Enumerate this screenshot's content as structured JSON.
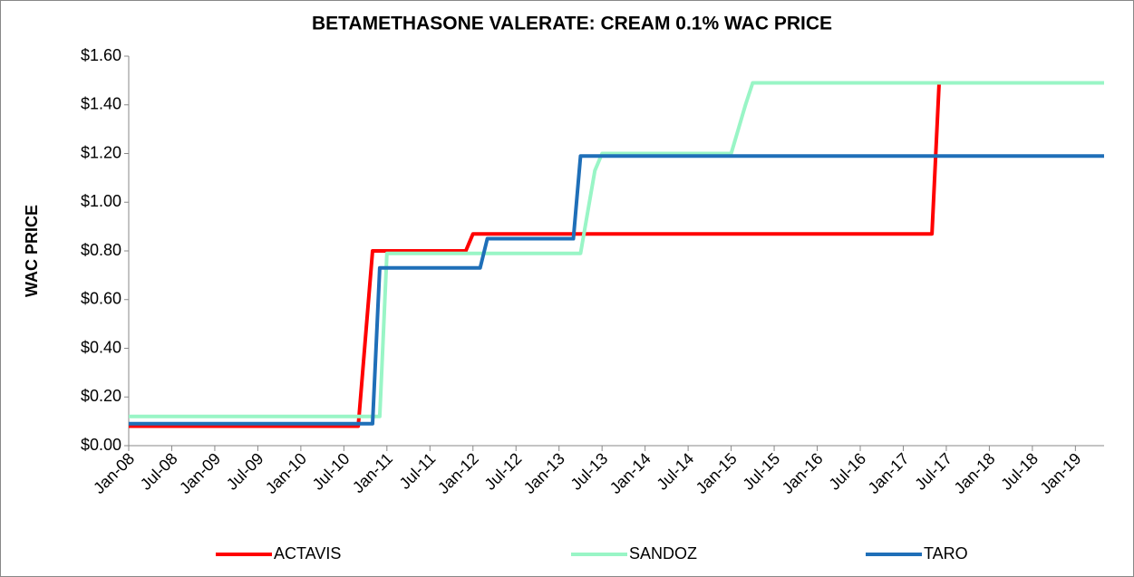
{
  "chart_data": {
    "type": "line",
    "title": "BETAMETHASONE VALERATE: CREAM 0.1% WAC PRICE",
    "y_label": "WAC PRICE",
    "categories": [
      "Jan-08",
      null,
      null,
      null,
      null,
      null,
      "Jul-08",
      null,
      null,
      null,
      null,
      null,
      "Jan-09",
      null,
      null,
      null,
      null,
      null,
      "Jul-09",
      null,
      null,
      null,
      null,
      null,
      "Jan-10",
      null,
      null,
      null,
      null,
      null,
      "Jul-10",
      null,
      null,
      null,
      null,
      null,
      "Jan-11",
      null,
      null,
      null,
      null,
      null,
      "Jul-11",
      null,
      null,
      null,
      null,
      null,
      "Jan-12",
      null,
      null,
      null,
      null,
      null,
      "Jul-12",
      null,
      null,
      null,
      null,
      null,
      "Jan-13",
      null,
      null,
      null,
      null,
      null,
      "Jul-13",
      null,
      null,
      null,
      null,
      null,
      "Jan-14",
      null,
      null,
      null,
      null,
      null,
      "Jul-14",
      null,
      null,
      null,
      null,
      null,
      "Jan-15",
      null,
      null,
      null,
      null,
      null,
      "Jul-15",
      null,
      null,
      null,
      null,
      null,
      "Jan-16",
      null,
      null,
      null,
      null,
      null,
      "Jul-16",
      null,
      null,
      null,
      null,
      null,
      "Jan-17",
      null,
      null,
      null,
      null,
      null,
      "Jul-17",
      null,
      null,
      null,
      null,
      null,
      "Jan-18",
      null,
      null,
      null,
      null,
      null,
      "Jul-18",
      null,
      null,
      null,
      null,
      null,
      "Jan-19",
      null,
      null,
      null,
      null
    ],
    "series": [
      {
        "name": "ACTAVIS",
        "color": "#ff0000",
        "values": [
          0.08,
          0.08,
          0.08,
          0.08,
          0.08,
          0.08,
          0.08,
          0.08,
          0.08,
          0.08,
          0.08,
          0.08,
          0.08,
          0.08,
          0.08,
          0.08,
          0.08,
          0.08,
          0.08,
          0.08,
          0.08,
          0.08,
          0.08,
          0.08,
          0.08,
          0.08,
          0.08,
          0.08,
          0.08,
          0.08,
          0.08,
          0.08,
          0.08,
          0.44,
          0.8,
          0.8,
          0.8,
          0.8,
          0.8,
          0.8,
          0.8,
          0.8,
          0.8,
          0.8,
          0.8,
          0.8,
          0.8,
          0.8,
          0.87,
          0.87,
          0.87,
          0.87,
          0.87,
          0.87,
          0.87,
          0.87,
          0.87,
          0.87,
          0.87,
          0.87,
          0.87,
          0.87,
          0.87,
          0.87,
          0.87,
          0.87,
          0.87,
          0.87,
          0.87,
          0.87,
          0.87,
          0.87,
          0.87,
          0.87,
          0.87,
          0.87,
          0.87,
          0.87,
          0.87,
          0.87,
          0.87,
          0.87,
          0.87,
          0.87,
          0.87,
          0.87,
          0.87,
          0.87,
          0.87,
          0.87,
          0.87,
          0.87,
          0.87,
          0.87,
          0.87,
          0.87,
          0.87,
          0.87,
          0.87,
          0.87,
          0.87,
          0.87,
          0.87,
          0.87,
          0.87,
          0.87,
          0.87,
          0.87,
          0.87,
          0.87,
          0.87,
          0.87,
          0.87,
          1.49,
          1.49,
          1.49,
          1.49,
          1.49,
          1.49,
          1.49,
          1.49,
          1.49,
          1.49,
          1.49,
          1.49,
          1.49,
          1.49,
          1.49,
          1.49,
          1.49,
          1.49,
          1.49,
          1.49,
          1.49,
          1.49,
          1.49,
          1.49
        ]
      },
      {
        "name": "SANDOZ",
        "color": "#99f5c6",
        "values": [
          0.12,
          0.12,
          0.12,
          0.12,
          0.12,
          0.12,
          0.12,
          0.12,
          0.12,
          0.12,
          0.12,
          0.12,
          0.12,
          0.12,
          0.12,
          0.12,
          0.12,
          0.12,
          0.12,
          0.12,
          0.12,
          0.12,
          0.12,
          0.12,
          0.12,
          0.12,
          0.12,
          0.12,
          0.12,
          0.12,
          0.12,
          0.12,
          0.12,
          0.12,
          0.12,
          0.12,
          0.79,
          0.79,
          0.79,
          0.79,
          0.79,
          0.79,
          0.79,
          0.79,
          0.79,
          0.79,
          0.79,
          0.79,
          0.79,
          0.79,
          0.79,
          0.79,
          0.79,
          0.79,
          0.79,
          0.79,
          0.79,
          0.79,
          0.79,
          0.79,
          0.79,
          0.79,
          0.79,
          0.79,
          0.96,
          1.13,
          1.2,
          1.2,
          1.2,
          1.2,
          1.2,
          1.2,
          1.2,
          1.2,
          1.2,
          1.2,
          1.2,
          1.2,
          1.2,
          1.2,
          1.2,
          1.2,
          1.2,
          1.2,
          1.2,
          1.3,
          1.4,
          1.49,
          1.49,
          1.49,
          1.49,
          1.49,
          1.49,
          1.49,
          1.49,
          1.49,
          1.49,
          1.49,
          1.49,
          1.49,
          1.49,
          1.49,
          1.49,
          1.49,
          1.49,
          1.49,
          1.49,
          1.49,
          1.49,
          1.49,
          1.49,
          1.49,
          1.49,
          1.49,
          1.49,
          1.49,
          1.49,
          1.49,
          1.49,
          1.49,
          1.49,
          1.49,
          1.49,
          1.49,
          1.49,
          1.49,
          1.49,
          1.49,
          1.49,
          1.49,
          1.49,
          1.49,
          1.49,
          1.49,
          1.49,
          1.49,
          1.49
        ]
      },
      {
        "name": "TARO",
        "color": "#1f6fb8",
        "values": [
          0.09,
          0.09,
          0.09,
          0.09,
          0.09,
          0.09,
          0.09,
          0.09,
          0.09,
          0.09,
          0.09,
          0.09,
          0.09,
          0.09,
          0.09,
          0.09,
          0.09,
          0.09,
          0.09,
          0.09,
          0.09,
          0.09,
          0.09,
          0.09,
          0.09,
          0.09,
          0.09,
          0.09,
          0.09,
          0.09,
          0.09,
          0.09,
          0.09,
          0.09,
          0.09,
          0.73,
          0.73,
          0.73,
          0.73,
          0.73,
          0.73,
          0.73,
          0.73,
          0.73,
          0.73,
          0.73,
          0.73,
          0.73,
          0.73,
          0.73,
          0.85,
          0.85,
          0.85,
          0.85,
          0.85,
          0.85,
          0.85,
          0.85,
          0.85,
          0.85,
          0.85,
          0.85,
          0.85,
          1.19,
          1.19,
          1.19,
          1.19,
          1.19,
          1.19,
          1.19,
          1.19,
          1.19,
          1.19,
          1.19,
          1.19,
          1.19,
          1.19,
          1.19,
          1.19,
          1.19,
          1.19,
          1.19,
          1.19,
          1.19,
          1.19,
          1.19,
          1.19,
          1.19,
          1.19,
          1.19,
          1.19,
          1.19,
          1.19,
          1.19,
          1.19,
          1.19,
          1.19,
          1.19,
          1.19,
          1.19,
          1.19,
          1.19,
          1.19,
          1.19,
          1.19,
          1.19,
          1.19,
          1.19,
          1.19,
          1.19,
          1.19,
          1.19,
          1.19,
          1.19,
          1.19,
          1.19,
          1.19,
          1.19,
          1.19,
          1.19,
          1.19,
          1.19,
          1.19,
          1.19,
          1.19,
          1.19,
          1.19,
          1.19,
          1.19,
          1.19,
          1.19,
          1.19,
          1.19,
          1.19,
          1.19,
          1.19,
          1.19
        ]
      }
    ],
    "ylim": [
      0,
      1.6
    ],
    "yticks": [
      {
        "value": 0,
        "label": "$0.00"
      },
      {
        "value": 0.2,
        "label": "$0.20"
      },
      {
        "value": 0.4,
        "label": "$0.40"
      },
      {
        "value": 0.6,
        "label": "$0.60"
      },
      {
        "value": 0.8,
        "label": "$0.80"
      },
      {
        "value": 1.0,
        "label": "$1.00"
      },
      {
        "value": 1.2,
        "label": "$1.20"
      },
      {
        "value": 1.4,
        "label": "$1.40"
      },
      {
        "value": 1.6,
        "label": "$1.60"
      }
    ],
    "grid": false,
    "legend": "bottom"
  }
}
